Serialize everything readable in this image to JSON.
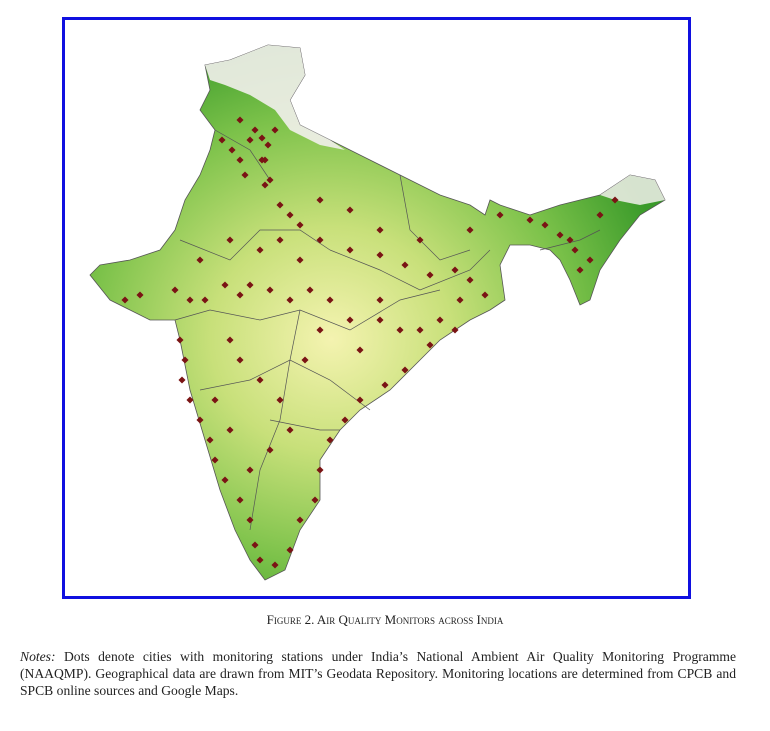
{
  "figure": {
    "caption": "Figure 2. Air Quality Monitors across India",
    "notes_label": "Notes:",
    "notes_text": " Dots denote cities with monitoring stations under India’s National Ambient Air Quality Monitoring Programme (NAAQMP). Geographical data are drawn from MIT’s Geodata Repository. Monitoring locations are determined from CPCB and SPCB online sources and Google Maps."
  },
  "map": {
    "frame_color": "#1010e0",
    "land_colors": [
      "#3a9a2a",
      "#7cc24a",
      "#c8e07a",
      "#f4f3b0"
    ],
    "snow_color": "#f2f0ec",
    "dot_color": "#7a1414"
  }
}
